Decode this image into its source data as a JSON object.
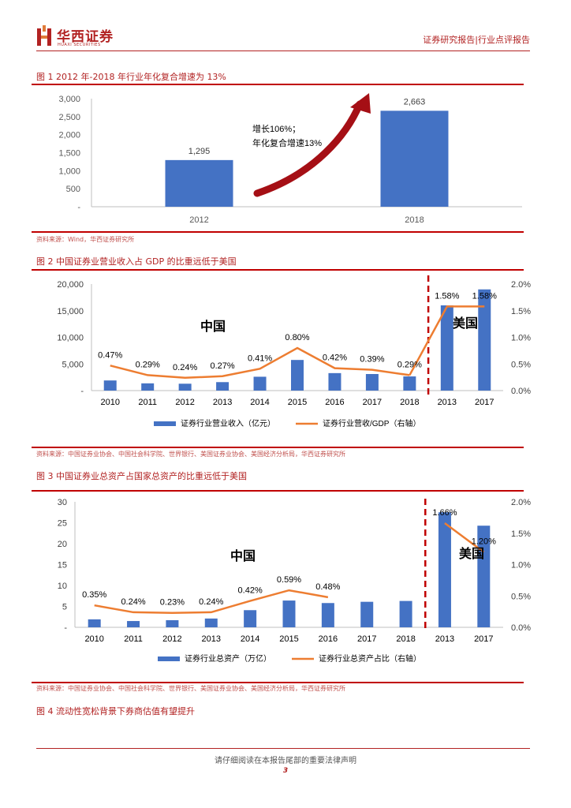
{
  "header": {
    "logo_cn": "华西证券",
    "logo_en": "HUAXI SECURITIES",
    "right_text": "证券研究报告|行业点评报告"
  },
  "fig1": {
    "title": "图 1   2012 年-2018 年行业年化复合增速为 13%",
    "source": "资料来源：Wind，华西证券研究所",
    "annotation_line1": "增长106%；",
    "annotation_line2": "年化复合增速13%"
  },
  "fig2": {
    "title": "图 2   中国证券业营业收入占 GDP 的比重远低于美国",
    "source": "资料来源：中国证券业协会、中国社会科学院、世界银行、美国证券业协会、美国经济分析局，华西证券研究所",
    "label_china": "中国",
    "label_us": "美国"
  },
  "fig3": {
    "title": "图 3   中国证券业总资产占国家总资产的比重远低于美国",
    "source": "资料来源：中国证券业协会、中国社会科学院、世界银行、美国证券业协会、美国经济分析局，华西证券研究所",
    "label_china": "中国",
    "label_us": "美国"
  },
  "fig4": {
    "title": "图 4   流动性宽松背景下券商估值有望提升"
  },
  "footer": {
    "text": "请仔细阅读在本报告尾部的重要法律声明",
    "page": "3"
  },
  "chart_data": [
    {
      "type": "bar",
      "categories": [
        "2012",
        "2018"
      ],
      "values": [
        1295,
        2663
      ],
      "value_labels": [
        "1,295",
        "2,663"
      ],
      "ylim": [
        0,
        3000
      ],
      "yticks": [
        "-",
        "500",
        "1,000",
        "1,500",
        "2,000",
        "2,500",
        "3,000"
      ],
      "bar_color": "#4472c4",
      "grid": false
    },
    {
      "type": "bar",
      "categories": [
        "2010",
        "2011",
        "2012",
        "2013",
        "2014",
        "2015",
        "2016",
        "2017",
        "2018",
        "2013",
        "2017"
      ],
      "series": [
        {
          "name": "证券行业营业收入（亿元）",
          "type": "bar",
          "values": [
            1900,
            1360,
            1290,
            1590,
            2600,
            5750,
            3280,
            3110,
            2660,
            16000,
            19000
          ],
          "color": "#4472c4"
        },
        {
          "name": "证券行业营收/GDP（右轴）",
          "type": "line",
          "axis": "right",
          "values": [
            0.47,
            0.29,
            0.24,
            0.27,
            0.41,
            0.8,
            0.42,
            0.39,
            0.29,
            1.58,
            1.58
          ],
          "labels": [
            "0.47%",
            "0.29%",
            "0.24%",
            "0.27%",
            "0.41%",
            "0.80%",
            "0.42%",
            "0.39%",
            "0.29%",
            "1.58%",
            "1.58%"
          ],
          "color": "#ed7d31"
        }
      ],
      "ylim": [
        0,
        20000
      ],
      "yticks": [
        "-",
        "5,000",
        "10,000",
        "15,000",
        "20,000"
      ],
      "y2lim": [
        0,
        2.0
      ],
      "y2ticks": [
        "0.0%",
        "0.5%",
        "1.0%",
        "1.5%",
        "2.0%"
      ],
      "legend_placement": "bottom"
    },
    {
      "type": "bar",
      "categories": [
        "2010",
        "2011",
        "2012",
        "2013",
        "2014",
        "2015",
        "2016",
        "2017",
        "2018",
        "2013",
        "2017"
      ],
      "series": [
        {
          "name": "证券行业总资产（万亿）",
          "type": "bar",
          "values": [
            1.9,
            1.5,
            1.7,
            2.1,
            4.1,
            6.4,
            5.8,
            6.1,
            6.3,
            27.5,
            24.3
          ],
          "color": "#4472c4"
        },
        {
          "name": "证券行业总资产占比（右轴）",
          "type": "line",
          "axis": "right",
          "values": [
            0.35,
            0.24,
            0.23,
            0.24,
            0.42,
            0.59,
            0.48,
            null,
            null,
            1.66,
            1.2
          ],
          "labels": [
            "0.35%",
            "0.24%",
            "0.23%",
            "0.24%",
            "0.42%",
            "0.59%",
            "0.48%",
            "",
            "",
            "1.66%",
            "1.20%"
          ],
          "color": "#ed7d31"
        }
      ],
      "ylim": [
        0,
        30
      ],
      "yticks": [
        "-",
        "5",
        "10",
        "15",
        "20",
        "25",
        "30"
      ],
      "y2lim": [
        0,
        2.0
      ],
      "y2ticks": [
        "0.0%",
        "0.5%",
        "1.0%",
        "1.5%",
        "2.0%"
      ],
      "legend_placement": "bottom"
    }
  ]
}
